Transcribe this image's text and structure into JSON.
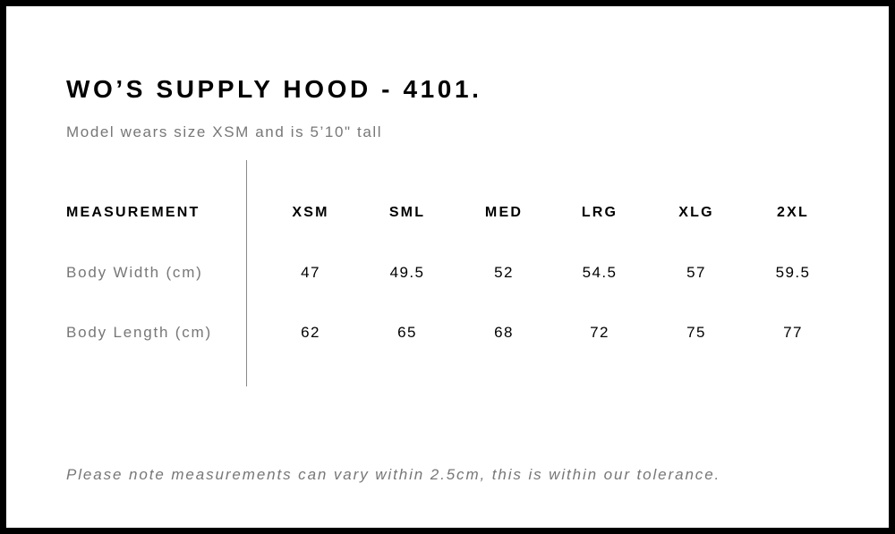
{
  "title": "WO’S SUPPLY HOOD - 4101.",
  "subtitle": "Model wears size XSM and is 5’10\" tall",
  "table": {
    "header_label": "MEASUREMENT",
    "sizes": [
      "XSM",
      "SML",
      "MED",
      "LRG",
      "XLG",
      "2XL"
    ],
    "rows": [
      {
        "label": "Body Width (cm)",
        "values": [
          "47",
          "49.5",
          "52",
          "54.5",
          "57",
          "59.5"
        ]
      },
      {
        "label": "Body Length (cm)",
        "values": [
          "62",
          "65",
          "68",
          "72",
          "75",
          "77"
        ]
      }
    ]
  },
  "note": "Please note measurements can vary within 2.5cm, this is within our tolerance.",
  "colors": {
    "border": "#000000",
    "heading": "#000000",
    "muted_text": "#777777",
    "divider": "#8a8a8a"
  }
}
